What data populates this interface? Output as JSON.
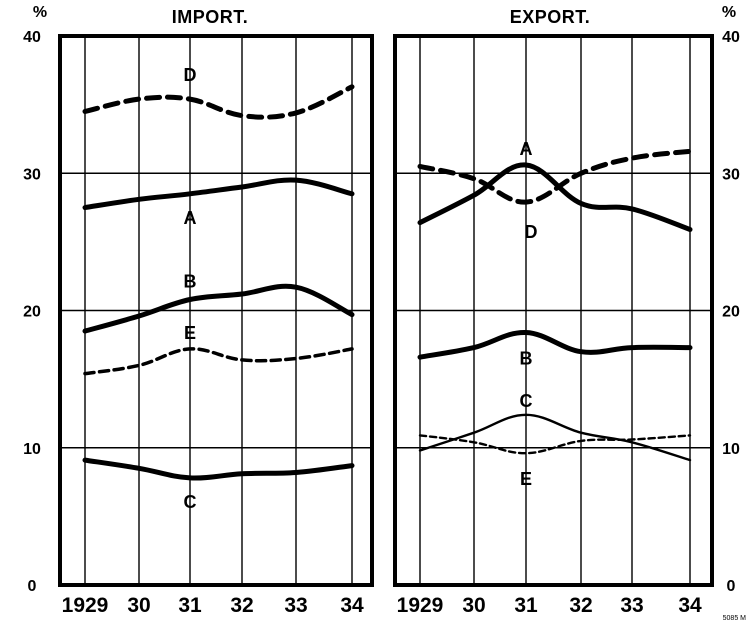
{
  "chart_data": [
    {
      "type": "line",
      "title": "IMPORT.",
      "ylabel": "%",
      "xlabel": "",
      "ylim": [
        0,
        40
      ],
      "x": [
        "1929",
        "30",
        "31",
        "32",
        "33",
        "34"
      ],
      "yticks": [
        "0",
        "10",
        "20",
        "30",
        "40"
      ],
      "grid": true,
      "series": [
        {
          "name": "D",
          "style": "dashed",
          "width": "thick",
          "values": [
            34.5,
            35.4,
            35.4,
            34.2,
            34.4,
            36.3
          ]
        },
        {
          "name": "A",
          "style": "solid",
          "width": "thick",
          "values": [
            27.5,
            28.1,
            28.5,
            29.0,
            29.5,
            28.5
          ]
        },
        {
          "name": "B",
          "style": "solid",
          "width": "thick",
          "values": [
            18.5,
            19.6,
            20.8,
            21.2,
            21.7,
            19.7
          ]
        },
        {
          "name": "E",
          "style": "dashed",
          "width": "medium",
          "values": [
            15.4,
            16.0,
            17.2,
            16.4,
            16.5,
            17.2
          ]
        },
        {
          "name": "C",
          "style": "solid",
          "width": "thick",
          "values": [
            9.1,
            8.5,
            7.8,
            8.1,
            8.2,
            8.7
          ]
        }
      ]
    },
    {
      "type": "line",
      "title": "EXPORT.",
      "ylabel": "%",
      "xlabel": "",
      "ylim": [
        0,
        40
      ],
      "x": [
        "1929",
        "30",
        "31",
        "32",
        "33",
        "34"
      ],
      "yticks": [
        "0",
        "10",
        "20",
        "30",
        "40"
      ],
      "grid": true,
      "series": [
        {
          "name": "D",
          "style": "dashed",
          "width": "thick",
          "values": [
            30.5,
            29.6,
            27.9,
            30.0,
            31.1,
            31.6
          ]
        },
        {
          "name": "A",
          "style": "solid",
          "width": "thick",
          "values": [
            26.4,
            28.4,
            30.6,
            27.8,
            27.4,
            25.9
          ]
        },
        {
          "name": "B",
          "style": "solid",
          "width": "thick",
          "values": [
            16.6,
            17.3,
            18.4,
            17.0,
            17.3,
            17.3
          ]
        },
        {
          "name": "C",
          "style": "solid",
          "width": "thin",
          "values": [
            9.8,
            11.1,
            12.4,
            11.1,
            10.4,
            9.1
          ]
        },
        {
          "name": "E",
          "style": "dashed",
          "width": "thin",
          "values": [
            10.9,
            10.4,
            9.6,
            10.5,
            10.6,
            10.9
          ]
        }
      ]
    }
  ],
  "corner_mark": "5085 M"
}
